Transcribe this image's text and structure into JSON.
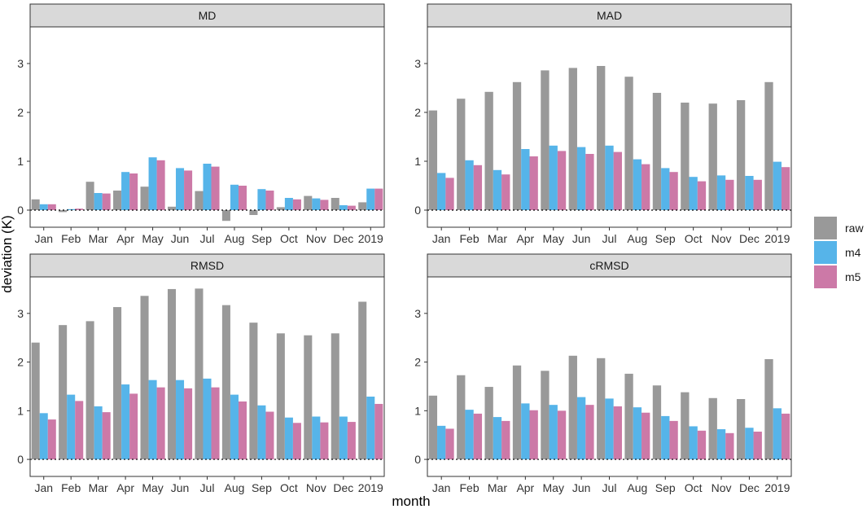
{
  "chart_data": {
    "type": "bar",
    "x_label": "month",
    "y_label": "deviation (K)",
    "categories": [
      "Jan",
      "Feb",
      "Mar",
      "Apr",
      "May",
      "Jun",
      "Jul",
      "Aug",
      "Sep",
      "Oct",
      "Nov",
      "Dec",
      "2019"
    ],
    "y_ticks": [
      "0",
      "1",
      "2",
      "3"
    ],
    "ylim": [
      -0.35,
      3.75
    ],
    "legend": {
      "position": "right",
      "entries": [
        "raw",
        "m4",
        "m5"
      ]
    },
    "colors": {
      "raw": "#999999",
      "m4": "#56B4E9",
      "m5": "#CC79A7"
    },
    "panels": [
      {
        "title": "MD",
        "series": [
          {
            "name": "raw",
            "values": [
              0.22,
              -0.04,
              0.58,
              0.4,
              0.48,
              0.07,
              0.39,
              -0.22,
              -0.1,
              0.06,
              0.29,
              0.25,
              0.16
            ]
          },
          {
            "name": "m4",
            "values": [
              0.12,
              0.02,
              0.35,
              0.78,
              1.08,
              0.86,
              0.95,
              0.52,
              0.43,
              0.25,
              0.24,
              0.1,
              0.44
            ]
          },
          {
            "name": "m5",
            "values": [
              0.12,
              0.03,
              0.34,
              0.75,
              1.02,
              0.81,
              0.89,
              0.5,
              0.4,
              0.22,
              0.21,
              0.09,
              0.44
            ]
          }
        ]
      },
      {
        "title": "MAD",
        "series": [
          {
            "name": "raw",
            "values": [
              2.04,
              2.28,
              2.42,
              2.62,
              2.86,
              2.91,
              2.95,
              2.73,
              2.4,
              2.2,
              2.18,
              2.25,
              2.62
            ]
          },
          {
            "name": "m4",
            "values": [
              0.76,
              1.02,
              0.82,
              1.25,
              1.32,
              1.29,
              1.32,
              1.04,
              0.86,
              0.68,
              0.71,
              0.7,
              0.99
            ]
          },
          {
            "name": "m5",
            "values": [
              0.66,
              0.92,
              0.73,
              1.1,
              1.21,
              1.15,
              1.19,
              0.94,
              0.78,
              0.59,
              0.62,
              0.62,
              0.88
            ]
          }
        ]
      },
      {
        "title": "RMSD",
        "series": [
          {
            "name": "raw",
            "values": [
              2.4,
              2.76,
              2.84,
              3.13,
              3.36,
              3.5,
              3.51,
              3.17,
              2.81,
              2.59,
              2.55,
              2.59,
              3.24
            ]
          },
          {
            "name": "m4",
            "values": [
              0.95,
              1.33,
              1.09,
              1.54,
              1.63,
              1.63,
              1.66,
              1.33,
              1.11,
              0.86,
              0.88,
              0.88,
              1.29
            ]
          },
          {
            "name": "m5",
            "values": [
              0.82,
              1.2,
              0.97,
              1.35,
              1.48,
              1.46,
              1.48,
              1.19,
              0.98,
              0.75,
              0.76,
              0.77,
              1.14
            ]
          }
        ]
      },
      {
        "title": "cRMSD",
        "series": [
          {
            "name": "raw",
            "values": [
              1.31,
              1.73,
              1.49,
              1.93,
              1.82,
              2.13,
              2.08,
              1.76,
              1.52,
              1.38,
              1.26,
              1.24,
              2.06
            ]
          },
          {
            "name": "m4",
            "values": [
              0.69,
              1.02,
              0.87,
              1.15,
              1.12,
              1.28,
              1.25,
              1.07,
              0.89,
              0.68,
              0.62,
              0.65,
              1.05
            ]
          },
          {
            "name": "m5",
            "values": [
              0.63,
              0.94,
              0.79,
              1.01,
              1.0,
              1.12,
              1.09,
              0.96,
              0.79,
              0.59,
              0.54,
              0.57,
              0.94
            ]
          }
        ]
      }
    ]
  }
}
